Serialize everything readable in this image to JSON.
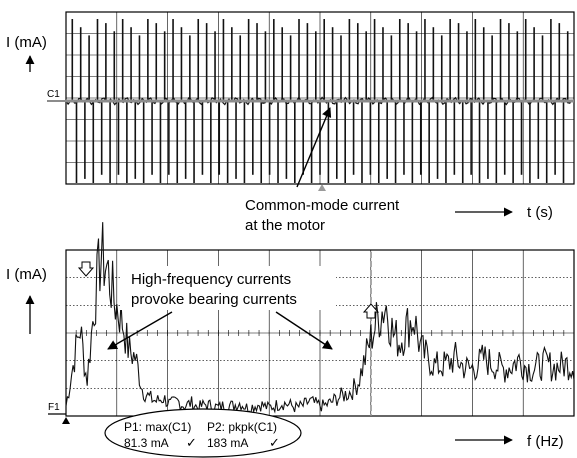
{
  "figure_id": "SSB2459-K-E",
  "colors": {
    "ink": "#000000",
    "trace": "#111111",
    "ref_gray": "#8c8c8c",
    "background": "#ffffff"
  },
  "chart_data": [
    {
      "type": "line",
      "panel": "top",
      "ylabel": "I (mA)",
      "xlabel": "t (s)",
      "grid": true,
      "channel_marker": "C1",
      "annotation": {
        "line1": "Common-mode current",
        "line2": "at the motor"
      },
      "series": [
        {
          "values": [
            0,
            1,
            -1,
            0.9,
            -0.95,
            0.8,
            -1,
            1,
            -0.9,
            0.95,
            -1,
            0.85,
            -0.9,
            1,
            -1,
            0.9,
            -0.95,
            0.8,
            -1,
            1,
            -0.9,
            0.95,
            -1,
            0.85,
            -0.9,
            1,
            -1,
            0.9,
            -0.95,
            0.8,
            -1,
            1,
            -0.9,
            0.95,
            -1,
            0.85,
            -0.9,
            1,
            -1,
            0.9,
            -0.95,
            0.8,
            -1,
            1,
            -0.9,
            0.95,
            -1,
            0.85,
            -0.9,
            1,
            -1,
            0.9,
            -0.95,
            0.8,
            -1,
            1,
            -0.9,
            0.95,
            -1,
            0.85,
            -0.9,
            1,
            -1,
            0.9,
            -0.95,
            0.8,
            -1,
            1,
            -0.9,
            0.95,
            -1,
            0.85,
            -0.9,
            1,
            -1,
            0.9,
            -0.95,
            0.8,
            -1,
            1,
            -0.9,
            0.95,
            -1,
            0.85,
            -0.9,
            1,
            -1,
            0.9,
            -0.95,
            0.8,
            -1,
            1,
            -0.9,
            0.95,
            -1,
            0.85,
            -0.9,
            1,
            -1,
            0.9,
            -0.95,
            0.8,
            -1,
            1,
            -0.9,
            0.95,
            -1,
            0.85,
            -0.9,
            1,
            -1,
            0.9,
            -0.95,
            0.8,
            -1,
            1,
            -0.9,
            0.95,
            -1,
            0.85,
            0
          ]
        }
      ]
    },
    {
      "type": "line",
      "panel": "bottom",
      "ylabel": "I (mA)",
      "xlabel": "f (Hz)",
      "grid": true,
      "channel_marker": "F1",
      "annotation": {
        "line1": "High-frequency currents",
        "line2": "provoke bearing currents"
      },
      "measurements": {
        "p1_label": "P1: max(C1)",
        "p1_value": "81.3 mA",
        "p1_check": "✓",
        "p2_label": "P2: pkpk(C1)",
        "p2_value": "183 mA",
        "p2_check": "✓"
      },
      "series": [
        {
          "values": [
            0.05,
            0.3,
            0.55,
            0.2,
            0.65,
            1.0,
            0.9,
            0.7,
            0.6,
            0.4,
            0.35,
            0.15,
            0.1,
            0.08,
            0.1,
            0.06,
            0.08,
            0.05,
            0.07,
            0.04,
            0.06,
            0.05,
            0.04,
            0.06,
            0.05,
            0.07,
            0.04,
            0.05,
            0.06,
            0.04,
            0.05,
            0.07,
            0.06,
            0.04,
            0.05,
            0.08,
            0.06,
            0.05,
            0.07,
            0.1,
            0.12,
            0.14,
            0.2,
            0.35,
            0.5,
            0.62,
            0.68,
            0.5,
            0.45,
            0.55,
            0.6,
            0.4,
            0.35,
            0.3,
            0.3,
            0.32,
            0.35,
            0.3,
            0.28,
            0.3,
            0.35,
            0.32,
            0.3,
            0.28,
            0.3,
            0.34,
            0.3,
            0.28,
            0.3,
            0.32,
            0.29,
            0.3,
            0.31,
            0.3
          ]
        }
      ]
    }
  ]
}
